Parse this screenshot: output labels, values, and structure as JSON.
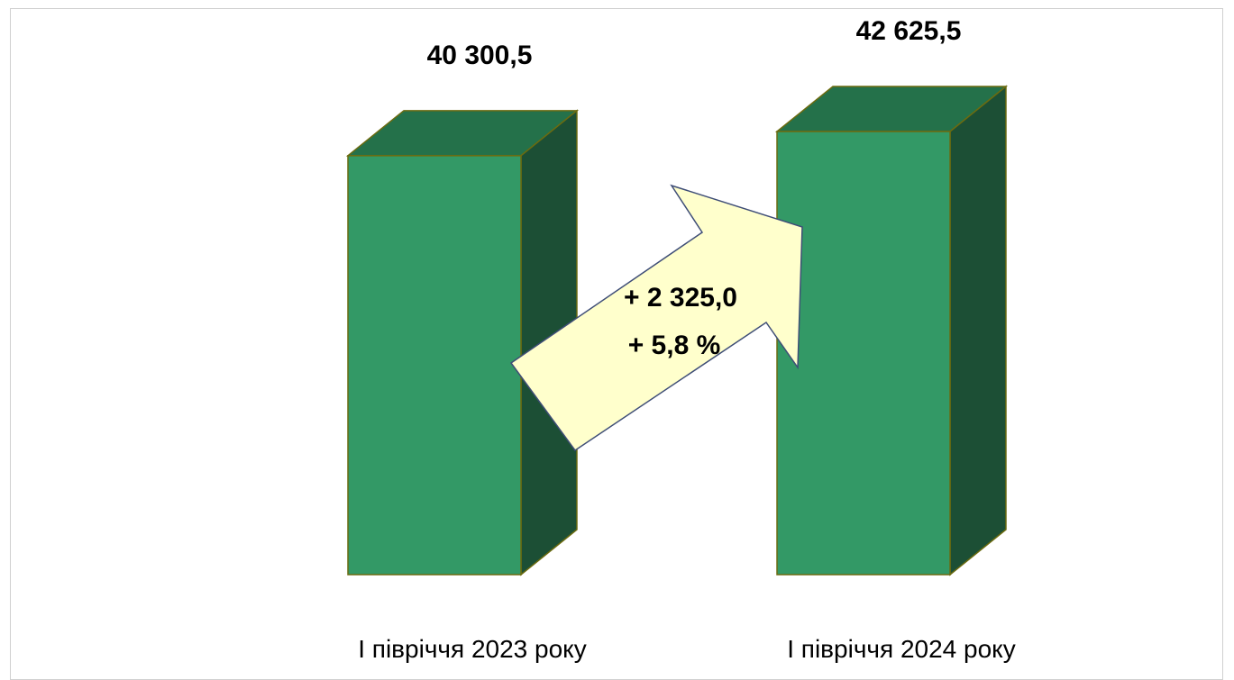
{
  "chart_data": {
    "type": "bar",
    "style": "3d-column",
    "categories": [
      "І півріччя 2023 року",
      "І півріччя 2024 року"
    ],
    "values": [
      40300.5,
      42625.5
    ],
    "value_labels": [
      "40 300,5",
      "42 625,5"
    ],
    "title": "",
    "xlabel": "",
    "ylabel": "",
    "grid": false,
    "legend": "none",
    "annotation": {
      "change": "+ 2 325,0",
      "percent": "+ 5,8 %"
    },
    "colors": {
      "bar_front": "#339966",
      "bar_top": "#24714A",
      "bar_side": "#1C4F35",
      "bar_edge": "#6B6B10",
      "arrow_fill": "#FFFFCC",
      "arrow_edge": "#3F4E77"
    }
  }
}
